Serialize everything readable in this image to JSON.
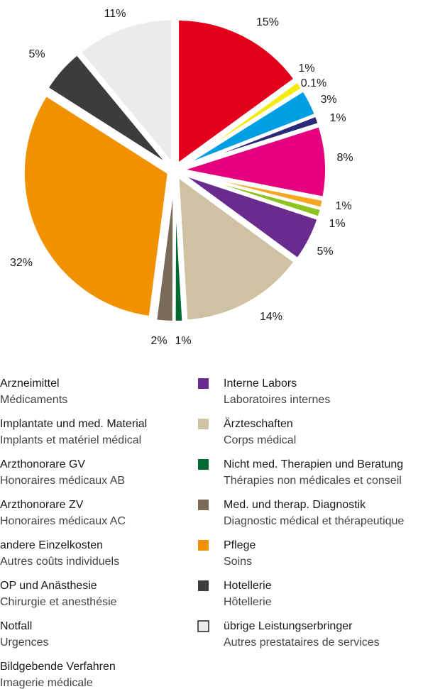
{
  "chart_data": {
    "type": "pie",
    "categories": [
      "Arzneimittel",
      "Implantate und med. Material",
      "Arzthonorare GV",
      "Arzthonorare ZV",
      "andere Einzelkosten",
      "OP und Anästhesie",
      "Notfall",
      "Bildgebende Verfahren",
      "Interne Labors",
      "Ärzteschaften",
      "Nicht med. Therapien und Beratung",
      "Med. und therap. Diagnostik",
      "Pflege",
      "Hotellerie",
      "übrige Leistungserbringer"
    ],
    "categories_fr": [
      "Médicaments",
      "Implants et matériel médical",
      "Honoraires médicaux AB",
      "Honoraires médicaux AC",
      "Autres coûts individuels",
      "Chirurgie et anesthésie",
      "Urgences",
      "Imagerie médicale",
      "Laboratoires internes",
      "Corps médical",
      "Thérapies non médicales et conseil",
      "Diagnostic médical et thérapeutique",
      "Soins",
      "Hôtellerie",
      "Autres prestataires de services"
    ],
    "values": [
      15,
      1,
      0.1,
      3,
      1,
      8,
      1,
      1,
      5,
      14,
      1,
      2,
      32,
      5,
      11
    ],
    "value_labels": [
      "15%",
      "1%",
      "0.1%",
      "3%",
      "1%",
      "8%",
      "1%",
      "1%",
      "5%",
      "14%",
      "1%",
      "2%",
      "32%",
      "5%",
      "11%"
    ],
    "colors": [
      "#e2001a",
      "#f5ea14",
      "#009b48",
      "#009fe3",
      "#2b2a78",
      "#e5007e",
      "#f6a623",
      "#8dc21f",
      "#6a2b8f",
      "#cfc2a2",
      "#006a33",
      "#7a6a58",
      "#f29100",
      "#3c3c3b",
      "#ebebeb"
    ]
  }
}
